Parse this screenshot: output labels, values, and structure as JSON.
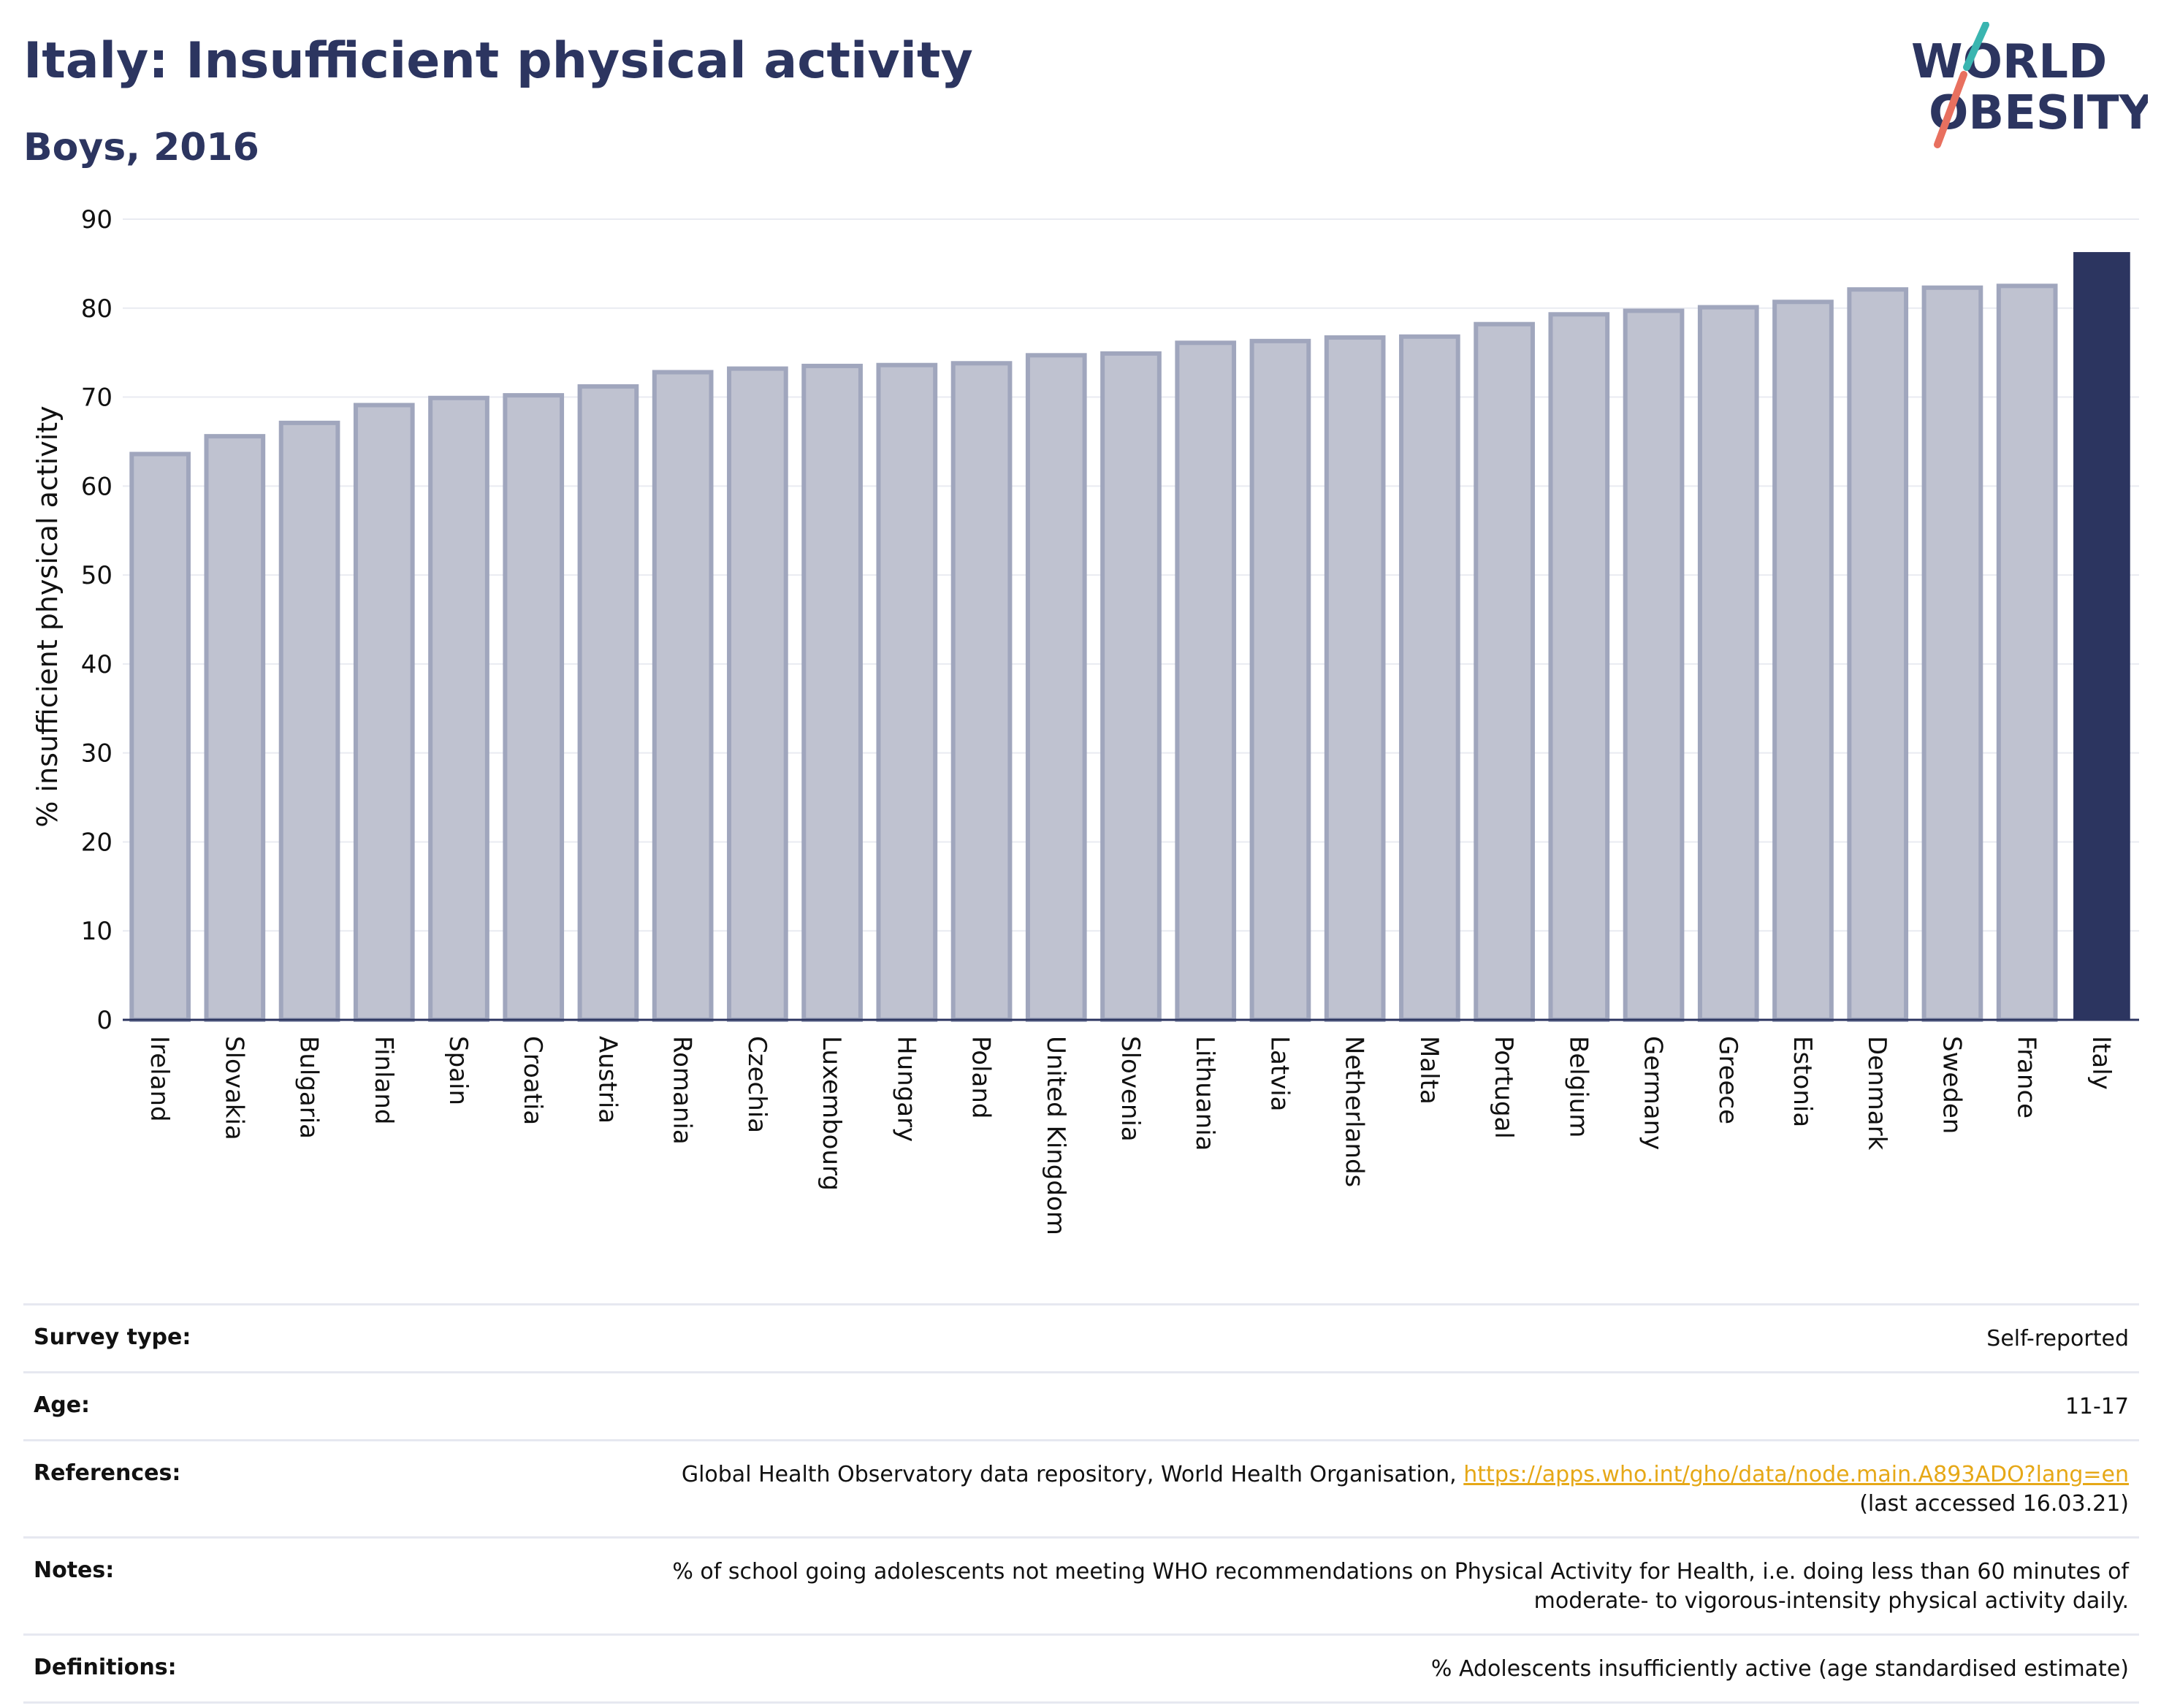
{
  "header": {
    "title": "Italy: Insufficient physical activity",
    "subtitle": "Boys, 2016"
  },
  "logo": {
    "line1": "WORLD",
    "line2": "OBESITY"
  },
  "colors": {
    "highlight": "#2c3560",
    "bar_fill": "#bfc2d0",
    "bar_stroke": "#a0a6bd",
    "accent": "#e6a817"
  },
  "chart_data": {
    "type": "bar",
    "ylabel": "% insufficient physical activity",
    "ylim": [
      0,
      90
    ],
    "yticks": [
      0,
      10,
      20,
      30,
      40,
      50,
      60,
      70,
      80,
      90
    ],
    "grid": true,
    "highlight": "Italy",
    "categories": [
      "Ireland",
      "Slovakia",
      "Bulgaria",
      "Finland",
      "Spain",
      "Croatia",
      "Austria",
      "Romania",
      "Czechia",
      "Luxembourg",
      "Hungary",
      "Poland",
      "United Kingdom",
      "Slovenia",
      "Lithuania",
      "Latvia",
      "Netherlands",
      "Malta",
      "Portugal",
      "Belgium",
      "Germany",
      "Greece",
      "Estonia",
      "Denmark",
      "Sweden",
      "France",
      "Italy"
    ],
    "values": [
      63.6,
      65.6,
      67.1,
      69.1,
      69.9,
      70.2,
      71.2,
      72.8,
      73.2,
      73.5,
      73.6,
      73.8,
      74.7,
      74.9,
      76.1,
      76.3,
      76.7,
      76.8,
      78.2,
      79.3,
      79.7,
      80.1,
      80.7,
      82.1,
      82.3,
      82.5,
      86.3
    ]
  },
  "info": [
    {
      "label": "Survey type:",
      "value": "Self-reported"
    },
    {
      "label": "Age:",
      "value": "11-17"
    },
    {
      "label": "References:",
      "value": "Global Health Observatory data repository, World Health Organisation,",
      "link": "https://apps.who.int/gho/data/node.main.A893ADO?lang=en",
      "extra": "(last accessed 16.03.21)"
    },
    {
      "label": "Notes:",
      "value": "% of school going adolescents not meeting WHO recommendations on Physical Activity for Health, i.e. doing less than 60 minutes of moderate- to vigorous-intensity physical activity daily."
    },
    {
      "label": "Definitions:",
      "value": "% Adolescents insufficiently active (age standardised estimate)"
    }
  ]
}
